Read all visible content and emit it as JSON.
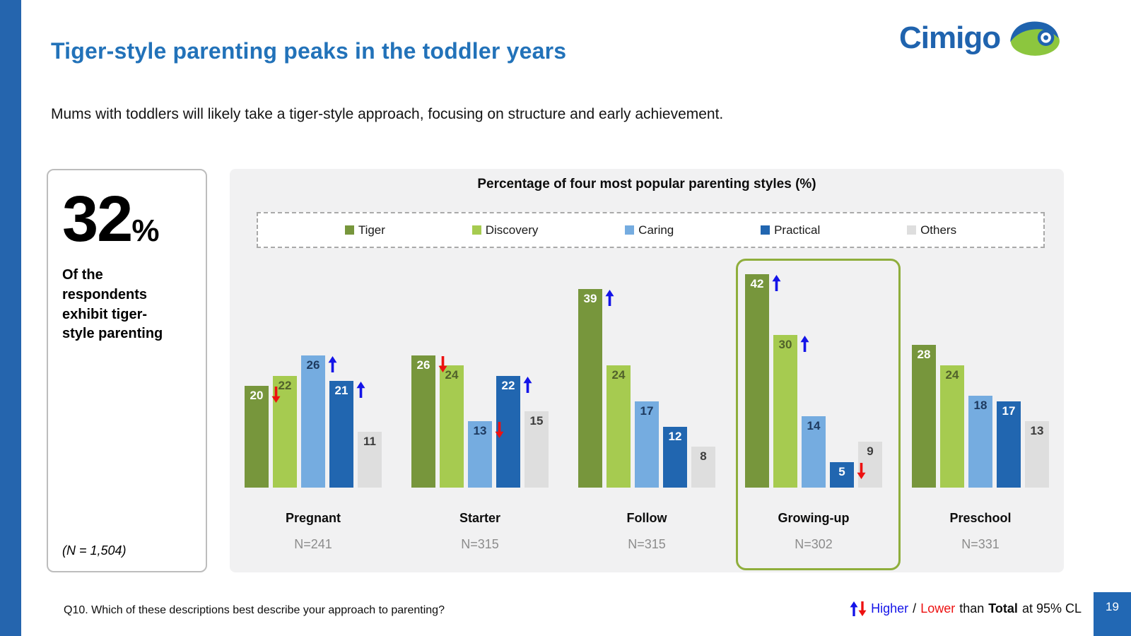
{
  "slide": {
    "title": "Tiger-style parenting peaks in the toddler years",
    "subtitle": "Mums with toddlers will likely take a tiger-style approach, focusing on structure and early achievement.",
    "page_number": "19"
  },
  "logo": {
    "text": "Cimigo"
  },
  "brand_colors": {
    "title_blue": "#2272B9",
    "strip_blue": "#2565AE",
    "logo_blue": "#1F63AE",
    "logo_green": "#8CC63E"
  },
  "stat_card": {
    "value": "32",
    "percent_sign": "%",
    "caption": "Of the respondents exhibit tiger-style parenting",
    "base_note": "(N = 1,504)"
  },
  "chart_data": {
    "type": "bar",
    "title": "Percentage of four most popular parenting styles (%)",
    "categories": [
      "Pregnant",
      "Starter",
      "Follow",
      "Growing-up",
      "Preschool"
    ],
    "bases": [
      "N=241",
      "N=315",
      "N=315",
      "N=302",
      "N=331"
    ],
    "series": [
      {
        "name": "Tiger",
        "values": [
          20,
          26,
          39,
          42,
          28
        ],
        "arrows": [
          "down",
          "down",
          "up",
          "up",
          null
        ]
      },
      {
        "name": "Discovery",
        "values": [
          22,
          24,
          24,
          30,
          24
        ],
        "arrows": [
          null,
          null,
          null,
          "up",
          null
        ]
      },
      {
        "name": "Caring",
        "values": [
          26,
          13,
          17,
          14,
          18
        ],
        "arrows": [
          "up",
          "down",
          null,
          null,
          null
        ]
      },
      {
        "name": "Practical",
        "values": [
          21,
          22,
          12,
          5,
          17
        ],
        "arrows": [
          "up",
          "up",
          null,
          "down",
          null
        ]
      },
      {
        "name": "Others",
        "values": [
          11,
          15,
          8,
          9,
          13
        ],
        "arrows": [
          null,
          null,
          null,
          null,
          null
        ]
      }
    ],
    "series_colors": [
      "#77963C",
      "#A6CB50",
      "#75ACE0",
      "#2166B0",
      "#DEDEDE"
    ],
    "label_colors": [
      "#FFFFFF",
      "#51622B",
      "#1E3A5F",
      "#FFFFFF",
      "#3D3D3D"
    ],
    "significance_colors": {
      "higher": "#1414E8",
      "lower": "#ED1111"
    },
    "highlight_category": "Growing-up",
    "highlight_border_color": "#8FAE3C",
    "ylim": [
      0,
      45
    ],
    "legend_position": "top",
    "grid": false
  },
  "footer": {
    "question": "Q10. Which of these descriptions best describe your approach to parenting?",
    "higher_label": "Higher",
    "slash": "/",
    "lower_label": "Lower",
    "than_text": "than",
    "total_text": "Total",
    "cl_text": "at 95% CL"
  }
}
